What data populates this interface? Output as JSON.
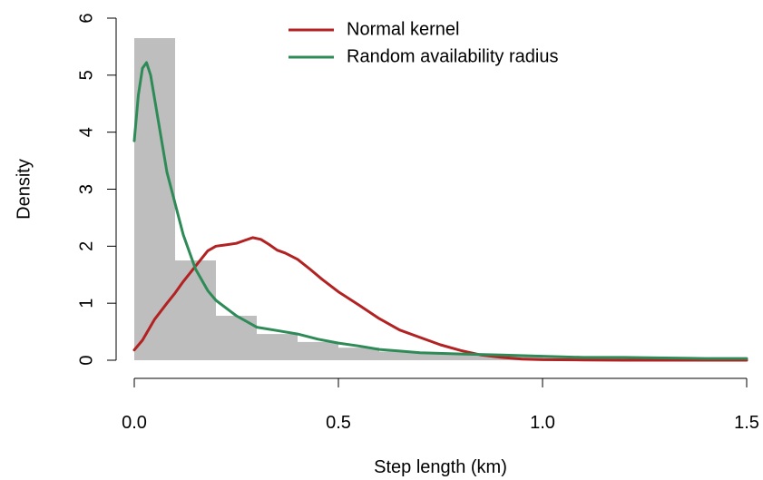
{
  "chart_data": {
    "type": "histogram+line",
    "xlabel": "Step length (km)",
    "ylabel": "Density",
    "xlim": [
      0,
      1.5
    ],
    "ylim": [
      0,
      6
    ],
    "x_ticks": [
      "0.0",
      "0.5",
      "1.0",
      "1.5"
    ],
    "y_ticks": [
      "0",
      "1",
      "2",
      "3",
      "4",
      "5",
      "6"
    ],
    "grid": false,
    "legend_position": "top-center",
    "histogram": {
      "color": "#bebebe",
      "bin_edges": [
        0.0,
        0.1,
        0.2,
        0.3,
        0.4,
        0.5,
        0.6,
        0.7,
        0.8,
        0.9,
        1.0,
        1.1,
        1.2,
        1.3,
        1.4,
        1.5
      ],
      "densities": [
        5.65,
        1.75,
        0.78,
        0.46,
        0.32,
        0.22,
        0.15,
        0.12,
        0.1,
        0.08,
        0.06,
        0.07,
        0.04,
        0.03,
        0.02
      ]
    },
    "series": [
      {
        "name": "Normal kernel",
        "color": "#b22222",
        "x": [
          0.0,
          0.02,
          0.05,
          0.08,
          0.1,
          0.12,
          0.15,
          0.18,
          0.2,
          0.22,
          0.25,
          0.27,
          0.29,
          0.31,
          0.33,
          0.35,
          0.37,
          0.4,
          0.43,
          0.46,
          0.5,
          0.55,
          0.6,
          0.65,
          0.7,
          0.75,
          0.8,
          0.85,
          0.9,
          0.95,
          1.0,
          1.1,
          1.2,
          1.3,
          1.4,
          1.5
        ],
        "y": [
          0.18,
          0.35,
          0.72,
          1.0,
          1.18,
          1.38,
          1.65,
          1.92,
          2.0,
          2.02,
          2.05,
          2.1,
          2.15,
          2.12,
          2.03,
          1.93,
          1.88,
          1.77,
          1.6,
          1.42,
          1.2,
          0.97,
          0.73,
          0.53,
          0.4,
          0.27,
          0.17,
          0.09,
          0.05,
          0.02,
          0.01,
          0.005,
          0.0,
          0.0,
          0.0,
          0.0
        ]
      },
      {
        "name": "Random availability radius",
        "color": "#2e8b57",
        "x": [
          0.0,
          0.01,
          0.02,
          0.03,
          0.04,
          0.06,
          0.08,
          0.1,
          0.12,
          0.15,
          0.18,
          0.2,
          0.25,
          0.3,
          0.35,
          0.4,
          0.45,
          0.5,
          0.55,
          0.6,
          0.65,
          0.7,
          0.8,
          0.9,
          1.0,
          1.1,
          1.2,
          1.3,
          1.4,
          1.5
        ],
        "y": [
          3.85,
          4.65,
          5.12,
          5.22,
          5.0,
          4.15,
          3.3,
          2.75,
          2.2,
          1.6,
          1.22,
          1.05,
          0.78,
          0.58,
          0.52,
          0.46,
          0.37,
          0.3,
          0.25,
          0.19,
          0.16,
          0.13,
          0.11,
          0.09,
          0.07,
          0.05,
          0.05,
          0.04,
          0.03,
          0.03
        ]
      }
    ]
  }
}
